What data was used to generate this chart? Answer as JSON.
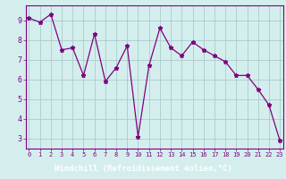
{
  "x": [
    0,
    1,
    2,
    3,
    4,
    5,
    6,
    7,
    8,
    9,
    10,
    11,
    12,
    13,
    14,
    15,
    16,
    17,
    18,
    19,
    20,
    21,
    22,
    23
  ],
  "y": [
    9.1,
    8.9,
    9.3,
    7.5,
    7.6,
    6.2,
    8.3,
    5.9,
    6.6,
    7.7,
    3.1,
    6.7,
    8.6,
    7.6,
    7.2,
    7.9,
    7.5,
    7.2,
    6.9,
    6.2,
    6.2,
    5.5,
    4.7,
    2.9
  ],
  "line_color": "#800080",
  "marker": "*",
  "marker_size": 3.5,
  "bg_color": "#d4eeee",
  "grid_color": "#aacccc",
  "xlabel": "Windchill (Refroidissement éolien,°C)",
  "xlabel_bg": "#800080",
  "xlabel_color": "#ffffff",
  "xtick_labels": [
    "0",
    "1",
    "2",
    "3",
    "4",
    "5",
    "6",
    "7",
    "8",
    "9",
    "10",
    "11",
    "12",
    "13",
    "14",
    "15",
    "16",
    "17",
    "18",
    "19",
    "20",
    "21",
    "22",
    "23"
  ],
  "ytick_labels": [
    "3",
    "4",
    "5",
    "6",
    "7",
    "8",
    "9"
  ],
  "yticks": [
    3,
    4,
    5,
    6,
    7,
    8,
    9
  ],
  "xlim": [
    -0.3,
    23.3
  ],
  "ylim": [
    2.5,
    9.75
  ],
  "axis_color": "#800080",
  "tick_color": "#800080"
}
